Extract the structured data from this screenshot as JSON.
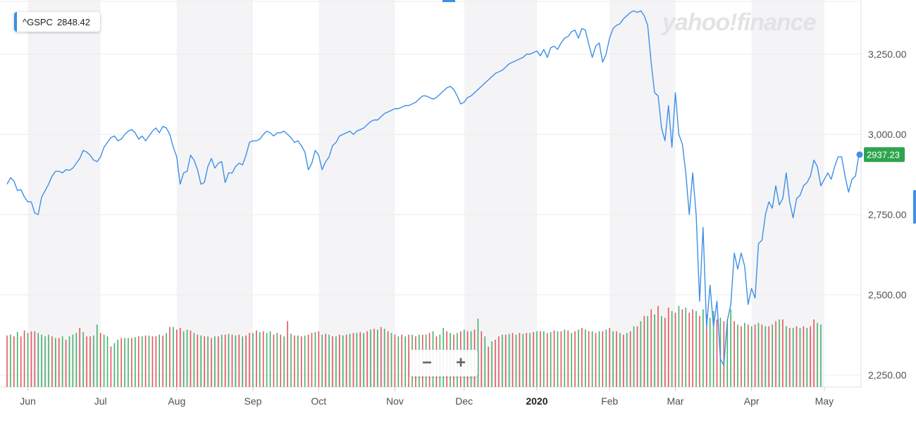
{
  "ticker": {
    "symbol": "^GSPC",
    "value": "2848.42"
  },
  "brand_text": "yahoo!finance",
  "last_price_badge": "2937.23",
  "zoom": {
    "minus": "−",
    "plus": "+"
  },
  "colors": {
    "line": "#3d8fe8",
    "up": "#43b36b",
    "down": "#e8545d",
    "badge": "#2ea44f",
    "band": "#f4f4f6"
  },
  "chart_data": {
    "type": "line",
    "title": "",
    "xlabel": "",
    "ylabel": "",
    "ylim": [
      2200,
      3400
    ],
    "y_ticks": [
      "2,250.00",
      "2,500.00",
      "2,750.00",
      "3,000.00",
      "3,250.00"
    ],
    "y_tick_values": [
      2250,
      2500,
      2750,
      3000,
      3250
    ],
    "month_labels": [
      "Jun",
      "Jul",
      "Aug",
      "Sep",
      "Oct",
      "Nov",
      "Dec",
      "2020",
      "Feb",
      "Mar",
      "Apr",
      "May"
    ],
    "month_start_index": [
      6,
      27,
      49,
      71,
      90,
      112,
      132,
      153,
      174,
      193,
      215,
      236
    ],
    "grid": true,
    "series": [
      {
        "values": [
          2845,
          2865,
          2855,
          2825,
          2828,
          2805,
          2790,
          2790,
          2755,
          2750,
          2805,
          2825,
          2845,
          2870,
          2885,
          2885,
          2880,
          2890,
          2888,
          2895,
          2910,
          2925,
          2950,
          2945,
          2935,
          2920,
          2915,
          2930,
          2960,
          2975,
          2990,
          2995,
          2980,
          2985,
          3000,
          3010,
          3015,
          3005,
          2985,
          2995,
          2980,
          2995,
          3010,
          3020,
          3005,
          3025,
          3020,
          3000,
          2960,
          2930,
          2845,
          2880,
          2885,
          2935,
          2920,
          2890,
          2845,
          2850,
          2900,
          2925,
          2895,
          2910,
          2915,
          2850,
          2880,
          2880,
          2900,
          2910,
          2905,
          2935,
          2975,
          2980,
          2980,
          2985,
          3000,
          3010,
          3005,
          2995,
          3005,
          3005,
          3010,
          3000,
          2990,
          2975,
          2980,
          2965,
          2945,
          2890,
          2910,
          2950,
          2935,
          2890,
          2915,
          2930,
          2965,
          2975,
          2995,
          3000,
          3005,
          3010,
          3000,
          3010,
          3015,
          3020,
          3030,
          3040,
          3045,
          3045,
          3055,
          3065,
          3070,
          3075,
          3080,
          3080,
          3085,
          3090,
          3090,
          3095,
          3100,
          3110,
          3120,
          3120,
          3115,
          3110,
          3115,
          3125,
          3135,
          3145,
          3150,
          3140,
          3120,
          3095,
          3100,
          3115,
          3120,
          3130,
          3140,
          3150,
          3160,
          3170,
          3180,
          3190,
          3195,
          3200,
          3210,
          3220,
          3225,
          3230,
          3235,
          3240,
          3250,
          3250,
          3255,
          3260,
          3245,
          3265,
          3240,
          3270,
          3275,
          3265,
          3285,
          3300,
          3305,
          3320,
          3325,
          3300,
          3330,
          3325,
          3280,
          3240,
          3275,
          3285,
          3225,
          3250,
          3300,
          3330,
          3340,
          3345,
          3360,
          3370,
          3380,
          3385,
          3380,
          3385,
          3370,
          3340,
          3225,
          3130,
          3120,
          3020,
          2980,
          3090,
          2960,
          3130,
          3000,
          2970,
          2880,
          2750,
          2880,
          2750,
          2480,
          2710,
          2400,
          2530,
          2400,
          2480,
          2300,
          2280,
          2420,
          2470,
          2630,
          2580,
          2630,
          2590,
          2470,
          2520,
          2490,
          2660,
          2670,
          2750,
          2790,
          2770,
          2840,
          2780,
          2800,
          2880,
          2790,
          2740,
          2800,
          2810,
          2840,
          2850,
          2870,
          2920,
          2900,
          2840,
          2860,
          2880,
          2860,
          2900,
          2930,
          2930,
          2870,
          2820,
          2860,
          2870,
          2937
        ]
      }
    ],
    "volume": [
      {
        "v": 3.05,
        "up": false
      },
      {
        "v": 3.1,
        "up": true
      },
      {
        "v": 3.0,
        "up": false
      },
      {
        "v": 3.25,
        "up": true
      },
      {
        "v": 3.0,
        "up": false
      },
      {
        "v": 3.35,
        "up": false
      },
      {
        "v": 3.2,
        "up": true
      },
      {
        "v": 3.3,
        "up": false
      },
      {
        "v": 3.3,
        "up": false
      },
      {
        "v": 3.2,
        "up": true
      },
      {
        "v": 3.1,
        "up": true
      },
      {
        "v": 3.0,
        "up": true
      },
      {
        "v": 3.1,
        "up": true
      },
      {
        "v": 3.0,
        "up": false
      },
      {
        "v": 2.9,
        "up": true
      },
      {
        "v": 2.9,
        "up": false
      },
      {
        "v": 3.0,
        "up": true
      },
      {
        "v": 2.8,
        "up": false
      },
      {
        "v": 3.0,
        "up": true
      },
      {
        "v": 3.1,
        "up": true
      },
      {
        "v": 3.2,
        "up": true
      },
      {
        "v": 3.5,
        "up": false
      },
      {
        "v": 3.25,
        "up": true
      },
      {
        "v": 3.0,
        "up": false
      },
      {
        "v": 3.0,
        "up": false
      },
      {
        "v": 3.05,
        "up": true
      },
      {
        "v": 3.7,
        "up": true
      },
      {
        "v": 3.2,
        "up": false
      },
      {
        "v": 3.1,
        "up": true
      },
      {
        "v": 3.0,
        "up": true
      },
      {
        "v": 2.4,
        "up": false
      },
      {
        "v": 2.6,
        "up": true
      },
      {
        "v": 2.8,
        "up": true
      },
      {
        "v": 2.9,
        "up": false
      },
      {
        "v": 2.9,
        "up": true
      },
      {
        "v": 2.9,
        "up": true
      },
      {
        "v": 2.9,
        "up": false
      },
      {
        "v": 2.95,
        "up": true
      },
      {
        "v": 3.0,
        "up": false
      },
      {
        "v": 3.0,
        "up": true
      },
      {
        "v": 3.05,
        "up": false
      },
      {
        "v": 3.05,
        "up": true
      },
      {
        "v": 3.0,
        "up": false
      },
      {
        "v": 3.0,
        "up": false
      },
      {
        "v": 3.1,
        "up": true
      },
      {
        "v": 3.05,
        "up": false
      },
      {
        "v": 3.2,
        "up": true
      },
      {
        "v": 3.55,
        "up": false
      },
      {
        "v": 3.55,
        "up": true
      },
      {
        "v": 3.4,
        "up": false
      },
      {
        "v": 3.5,
        "up": false
      },
      {
        "v": 3.3,
        "up": true
      },
      {
        "v": 3.4,
        "up": true
      },
      {
        "v": 3.35,
        "up": false
      },
      {
        "v": 3.2,
        "up": true
      },
      {
        "v": 3.1,
        "up": false
      },
      {
        "v": 3.05,
        "up": true
      },
      {
        "v": 3.0,
        "up": false
      },
      {
        "v": 3.0,
        "up": true
      },
      {
        "v": 2.9,
        "up": false
      },
      {
        "v": 3.0,
        "up": true
      },
      {
        "v": 3.0,
        "up": false
      },
      {
        "v": 3.1,
        "up": true
      },
      {
        "v": 3.1,
        "up": false
      },
      {
        "v": 3.15,
        "up": true
      },
      {
        "v": 3.1,
        "up": false
      },
      {
        "v": 3.05,
        "up": true
      },
      {
        "v": 3.1,
        "up": false
      },
      {
        "v": 3.0,
        "up": true
      },
      {
        "v": 3.05,
        "up": false
      },
      {
        "v": 3.2,
        "up": false
      },
      {
        "v": 3.2,
        "up": true
      },
      {
        "v": 3.35,
        "up": false
      },
      {
        "v": 3.25,
        "up": true
      },
      {
        "v": 3.3,
        "up": false
      },
      {
        "v": 3.2,
        "up": true
      },
      {
        "v": 3.3,
        "up": true
      },
      {
        "v": 3.1,
        "up": false
      },
      {
        "v": 3.2,
        "up": true
      },
      {
        "v": 3.1,
        "up": false
      },
      {
        "v": 3.0,
        "up": true
      },
      {
        "v": 3.9,
        "up": false
      },
      {
        "v": 3.15,
        "up": true
      },
      {
        "v": 3.05,
        "up": false
      },
      {
        "v": 3.05,
        "up": true
      },
      {
        "v": 3.0,
        "up": false
      },
      {
        "v": 3.05,
        "up": true
      },
      {
        "v": 3.1,
        "up": false
      },
      {
        "v": 3.2,
        "up": false
      },
      {
        "v": 3.25,
        "up": true
      },
      {
        "v": 3.3,
        "up": false
      },
      {
        "v": 3.1,
        "up": true
      },
      {
        "v": 3.15,
        "up": false
      },
      {
        "v": 3.1,
        "up": true
      },
      {
        "v": 3.0,
        "up": false
      },
      {
        "v": 3.0,
        "up": true
      },
      {
        "v": 3.1,
        "up": false
      },
      {
        "v": 3.05,
        "up": true
      },
      {
        "v": 3.1,
        "up": false
      },
      {
        "v": 3.15,
        "up": true
      },
      {
        "v": 3.2,
        "up": false
      },
      {
        "v": 3.2,
        "up": true
      },
      {
        "v": 3.25,
        "up": false
      },
      {
        "v": 3.2,
        "up": true
      },
      {
        "v": 3.3,
        "up": false
      },
      {
        "v": 3.4,
        "up": true
      },
      {
        "v": 3.45,
        "up": false
      },
      {
        "v": 3.4,
        "up": true
      },
      {
        "v": 3.55,
        "up": false
      },
      {
        "v": 3.45,
        "up": true
      },
      {
        "v": 3.3,
        "up": false
      },
      {
        "v": 3.2,
        "up": true
      },
      {
        "v": 3.1,
        "up": false
      },
      {
        "v": 3.0,
        "up": true
      },
      {
        "v": 3.1,
        "up": false
      },
      {
        "v": 3.0,
        "up": true
      },
      {
        "v": 3.1,
        "up": false
      },
      {
        "v": 3.1,
        "up": true
      },
      {
        "v": 3.0,
        "up": false
      },
      {
        "v": 3.1,
        "up": true
      },
      {
        "v": 3.1,
        "up": false
      },
      {
        "v": 3.1,
        "up": true
      },
      {
        "v": 3.2,
        "up": false
      },
      {
        "v": 3.3,
        "up": true
      },
      {
        "v": 3.0,
        "up": false
      },
      {
        "v": 3.1,
        "up": true
      },
      {
        "v": 3.5,
        "up": true
      },
      {
        "v": 3.3,
        "up": false
      },
      {
        "v": 3.2,
        "up": true
      },
      {
        "v": 3.1,
        "up": false
      },
      {
        "v": 3.2,
        "up": true
      },
      {
        "v": 3.3,
        "up": false
      },
      {
        "v": 3.4,
        "up": true
      },
      {
        "v": 3.3,
        "up": false
      },
      {
        "v": 3.3,
        "up": true
      },
      {
        "v": 3.4,
        "up": false
      },
      {
        "v": 4.05,
        "up": true
      },
      {
        "v": 3.3,
        "up": false
      },
      {
        "v": 3.0,
        "up": true
      },
      {
        "v": 2.4,
        "up": false
      },
      {
        "v": 2.7,
        "up": true
      },
      {
        "v": 2.8,
        "up": false
      },
      {
        "v": 3.0,
        "up": false
      },
      {
        "v": 3.1,
        "up": true
      },
      {
        "v": 3.1,
        "up": false
      },
      {
        "v": 3.15,
        "up": true
      },
      {
        "v": 3.2,
        "up": false
      },
      {
        "v": 3.1,
        "up": true
      },
      {
        "v": 3.2,
        "up": false
      },
      {
        "v": 3.15,
        "up": true
      },
      {
        "v": 3.2,
        "up": false
      },
      {
        "v": 3.2,
        "up": true
      },
      {
        "v": 3.25,
        "up": false
      },
      {
        "v": 3.3,
        "up": true
      },
      {
        "v": 3.3,
        "up": false
      },
      {
        "v": 3.3,
        "up": true
      },
      {
        "v": 3.2,
        "up": false
      },
      {
        "v": 3.25,
        "up": true
      },
      {
        "v": 3.35,
        "up": false
      },
      {
        "v": 3.3,
        "up": true
      },
      {
        "v": 3.3,
        "up": false
      },
      {
        "v": 3.4,
        "up": true
      },
      {
        "v": 3.35,
        "up": false
      },
      {
        "v": 3.2,
        "up": true
      },
      {
        "v": 3.3,
        "up": false
      },
      {
        "v": 3.4,
        "up": true
      },
      {
        "v": 3.5,
        "up": false
      },
      {
        "v": 3.4,
        "up": true
      },
      {
        "v": 3.3,
        "up": false
      },
      {
        "v": 3.3,
        "up": true
      },
      {
        "v": 3.2,
        "up": false
      },
      {
        "v": 3.3,
        "up": true
      },
      {
        "v": 3.3,
        "up": false
      },
      {
        "v": 3.4,
        "up": true
      },
      {
        "v": 3.5,
        "up": false
      },
      {
        "v": 3.3,
        "up": true
      },
      {
        "v": 3.3,
        "up": false
      },
      {
        "v": 3.2,
        "up": true
      },
      {
        "v": 3.1,
        "up": false
      },
      {
        "v": 3.2,
        "up": true
      },
      {
        "v": 3.3,
        "up": false
      },
      {
        "v": 3.6,
        "up": true
      },
      {
        "v": 3.6,
        "up": false
      },
      {
        "v": 3.9,
        "up": true
      },
      {
        "v": 4.2,
        "up": false
      },
      {
        "v": 4.2,
        "up": true
      },
      {
        "v": 4.6,
        "up": false
      },
      {
        "v": 4.3,
        "up": true
      },
      {
        "v": 4.8,
        "up": false
      },
      {
        "v": 4.2,
        "up": true
      },
      {
        "v": 4.1,
        "up": false
      },
      {
        "v": 4.7,
        "up": false
      },
      {
        "v": 4.5,
        "up": true
      },
      {
        "v": 4.4,
        "up": false
      },
      {
        "v": 4.8,
        "up": true
      },
      {
        "v": 4.6,
        "up": false
      },
      {
        "v": 4.7,
        "up": true
      },
      {
        "v": 4.4,
        "up": false
      },
      {
        "v": 4.6,
        "up": false
      },
      {
        "v": 4.5,
        "up": true
      },
      {
        "v": 4.2,
        "up": false
      },
      {
        "v": 4.6,
        "up": true
      },
      {
        "v": 4.3,
        "up": false
      },
      {
        "v": 4.1,
        "up": true
      },
      {
        "v": 4.5,
        "up": true
      },
      {
        "v": 4.0,
        "up": false
      },
      {
        "v": 4.1,
        "up": true
      },
      {
        "v": 3.9,
        "up": false
      },
      {
        "v": 4.0,
        "up": true
      },
      {
        "v": 4.6,
        "up": true
      },
      {
        "v": 3.9,
        "up": false
      },
      {
        "v": 3.7,
        "up": true
      },
      {
        "v": 3.6,
        "up": false
      },
      {
        "v": 3.8,
        "up": true
      },
      {
        "v": 3.7,
        "up": false
      },
      {
        "v": 3.6,
        "up": true
      },
      {
        "v": 3.7,
        "up": false
      },
      {
        "v": 3.8,
        "up": true
      },
      {
        "v": 3.7,
        "up": false
      },
      {
        "v": 3.6,
        "up": true
      },
      {
        "v": 3.6,
        "up": false
      },
      {
        "v": 3.7,
        "up": true
      },
      {
        "v": 3.9,
        "up": false
      },
      {
        "v": 4.0,
        "up": true
      },
      {
        "v": 4.0,
        "up": false
      },
      {
        "v": 3.6,
        "up": true
      },
      {
        "v": 3.5,
        "up": false
      },
      {
        "v": 3.5,
        "up": true
      },
      {
        "v": 3.6,
        "up": false
      },
      {
        "v": 3.5,
        "up": true
      },
      {
        "v": 3.6,
        "up": false
      },
      {
        "v": 3.5,
        "up": true
      },
      {
        "v": 3.6,
        "up": false
      },
      {
        "v": 4.0,
        "up": false
      },
      {
        "v": 3.8,
        "up": true
      },
      {
        "v": 3.7,
        "up": true
      }
    ]
  }
}
